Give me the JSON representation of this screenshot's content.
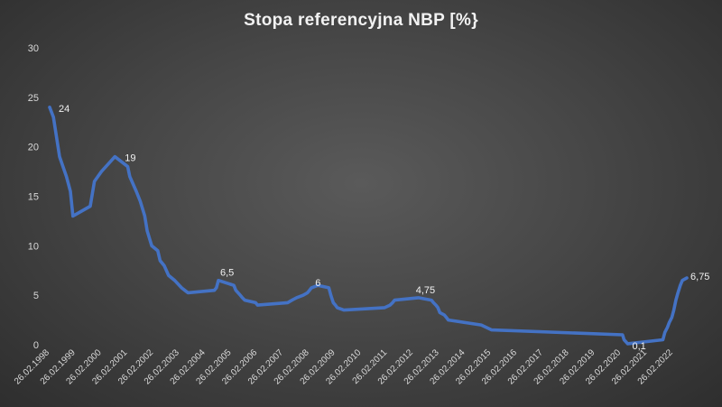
{
  "chart_data": {
    "type": "line",
    "title": "Stopa referencyjna NBP [%}",
    "xlabel": "",
    "ylabel": "",
    "ylim": [
      0,
      30
    ],
    "yticks": [
      "0",
      "5",
      "10",
      "15",
      "20",
      "25",
      "30"
    ],
    "xlim": [
      "1998-02-26",
      "2022-12-31"
    ],
    "xticks": [
      "26.02.1998",
      "26.02.1999",
      "26.02.2000",
      "26.02.2001",
      "26.02.2002",
      "26.02.2003",
      "26.02.2004",
      "26.02.2005",
      "26.02.2006",
      "26.02.2007",
      "26.02.2008",
      "26.02.2009",
      "26.02.2010",
      "26.02.2011",
      "26.02.2012",
      "26.02.2013",
      "26.02.2014",
      "26.02.2015",
      "26.02.2016",
      "26.02.2017",
      "26.02.2018",
      "26.02.2019",
      "26.02.2020",
      "26.02.2021",
      "26.02.2022"
    ],
    "grid": false,
    "legend": "none",
    "colors": {
      "line": "#4472c4",
      "text": "#d9d9d9",
      "title": "#f2f2f2"
    },
    "series": [
      {
        "points": [
          [
            "1998-02-26",
            24
          ],
          [
            "1998-04-20",
            23
          ],
          [
            "1998-07-15",
            19
          ],
          [
            "1998-10-20",
            17
          ],
          [
            "1998-12-15",
            15.5
          ],
          [
            "1999-01-20",
            13
          ],
          [
            "1999-09-20",
            14
          ],
          [
            "1999-11-17",
            16.5
          ],
          [
            "2000-02-24",
            17.5
          ],
          [
            "2000-08-31",
            19
          ],
          [
            "2001-02-28",
            18
          ],
          [
            "2001-03-29",
            17
          ],
          [
            "2001-06-28",
            15.5
          ],
          [
            "2001-08-23",
            14.5
          ],
          [
            "2001-10-26",
            13
          ],
          [
            "2001-11-29",
            11.5
          ],
          [
            "2002-01-31",
            10
          ],
          [
            "2002-04-26",
            9.5
          ],
          [
            "2002-05-30",
            8.5
          ],
          [
            "2002-07-25",
            8
          ],
          [
            "2002-09-26",
            7
          ],
          [
            "2002-12-20",
            6.5
          ],
          [
            "2003-03-27",
            5.75
          ],
          [
            "2003-06-26",
            5.25
          ],
          [
            "2004-06-30",
            5.5
          ],
          [
            "2004-07-29",
            5.75
          ],
          [
            "2004-08-26",
            6.5
          ],
          [
            "2005-03-31",
            6
          ],
          [
            "2005-04-28",
            5.5
          ],
          [
            "2005-06-30",
            5
          ],
          [
            "2005-07-28",
            4.75
          ],
          [
            "2005-09-01",
            4.5
          ],
          [
            "2006-01-31",
            4.25
          ],
          [
            "2006-02-28",
            4
          ],
          [
            "2007-04-26",
            4.25
          ],
          [
            "2007-06-28",
            4.5
          ],
          [
            "2007-08-30",
            4.75
          ],
          [
            "2007-11-29",
            5
          ],
          [
            "2008-01-31",
            5.25
          ],
          [
            "2008-02-28",
            5.5
          ],
          [
            "2008-03-27",
            5.75
          ],
          [
            "2008-06-26",
            6
          ],
          [
            "2008-11-27",
            5.75
          ],
          [
            "2008-12-24",
            5
          ],
          [
            "2009-01-28",
            4.25
          ],
          [
            "2009-02-26",
            4
          ],
          [
            "2009-03-25",
            3.75
          ],
          [
            "2009-06-25",
            3.5
          ],
          [
            "2011-01-20",
            3.75
          ],
          [
            "2011-04-06",
            4
          ],
          [
            "2011-05-12",
            4.25
          ],
          [
            "2011-06-09",
            4.5
          ],
          [
            "2012-05-10",
            4.75
          ],
          [
            "2012-11-08",
            4.5
          ],
          [
            "2012-12-06",
            4.25
          ],
          [
            "2013-01-10",
            4
          ],
          [
            "2013-02-07",
            3.75
          ],
          [
            "2013-03-07",
            3.25
          ],
          [
            "2013-05-09",
            3
          ],
          [
            "2013-06-06",
            2.75
          ],
          [
            "2013-07-04",
            2.5
          ],
          [
            "2014-10-09",
            2
          ],
          [
            "2015-03-05",
            1.5
          ],
          [
            "2020-03-18",
            1
          ],
          [
            "2020-04-09",
            0.5
          ],
          [
            "2020-05-29",
            0.1
          ],
          [
            "2021-10-07",
            0.5
          ],
          [
            "2021-11-04",
            1.25
          ],
          [
            "2021-12-09",
            1.75
          ],
          [
            "2022-01-05",
            2.25
          ],
          [
            "2022-02-09",
            2.75
          ],
          [
            "2022-03-09",
            3.5
          ],
          [
            "2022-04-07",
            4.5
          ],
          [
            "2022-05-06",
            5.25
          ],
          [
            "2022-06-09",
            6
          ],
          [
            "2022-07-08",
            6.5
          ],
          [
            "2022-09-08",
            6.75
          ]
        ]
      }
    ],
    "annotations": [
      {
        "x": "1998-02-26",
        "y": 24,
        "text": "24"
      },
      {
        "x": "2000-08-31",
        "y": 19,
        "text": "19"
      },
      {
        "x": "2004-08-26",
        "y": 6.5,
        "text": "6,5"
      },
      {
        "x": "2008-06-26",
        "y": 6,
        "text": "6"
      },
      {
        "x": "2012-05-10",
        "y": 4.75,
        "text": "4,75"
      },
      {
        "x": "2020-05-29",
        "y": 0.1,
        "text": "0,1"
      },
      {
        "x": "2022-09-08",
        "y": 6.75,
        "text": "6,75"
      }
    ]
  }
}
